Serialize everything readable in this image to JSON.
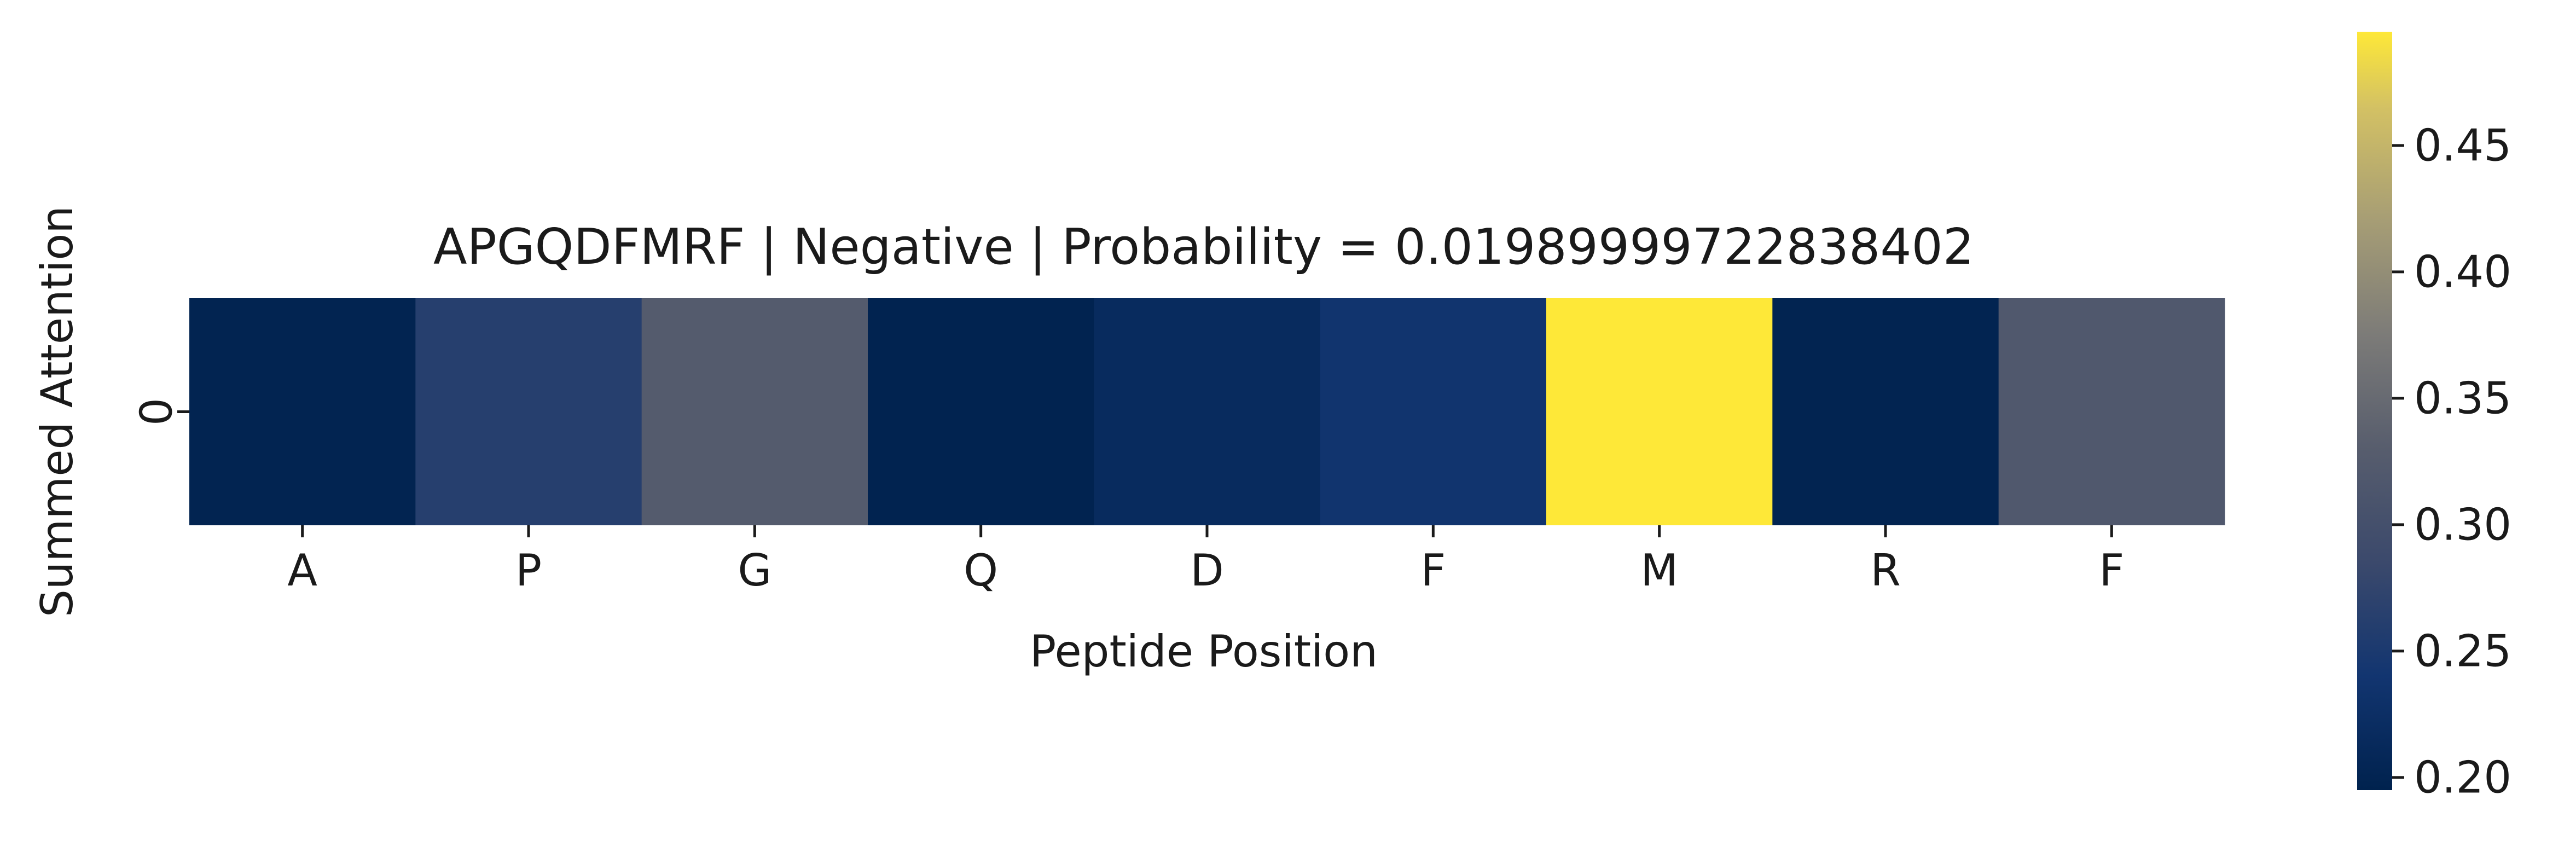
{
  "chart_data": {
    "type": "heatmap",
    "title": "APGQDFMRF | Negative | Probability = 0.01989999722838402",
    "xlabel": "Peptide Position",
    "ylabel": "Summed Attention",
    "x_categories": [
      "A",
      "P",
      "G",
      "Q",
      "D",
      "F",
      "M",
      "R",
      "F"
    ],
    "y_categories": [
      "0"
    ],
    "values": [
      [
        0.199,
        0.262,
        0.325,
        0.197,
        0.216,
        0.237,
        0.495,
        0.199,
        0.318
      ]
    ],
    "colormap": "cividis",
    "colorbar": {
      "range": [
        0.195,
        0.495
      ],
      "ticks": [
        0.2,
        0.25,
        0.3,
        0.35,
        0.4,
        0.45
      ],
      "tick_labels": [
        "0.20",
        "0.25",
        "0.30",
        "0.35",
        "0.40",
        "0.45"
      ]
    },
    "colors": {
      "low": "#00224e",
      "mid": "#7c7b78",
      "high": "#fee838"
    }
  }
}
